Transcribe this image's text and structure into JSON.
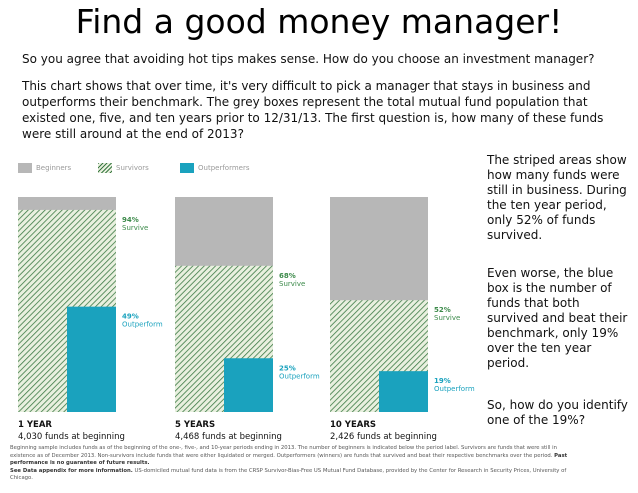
{
  "header": {
    "title": "Find a good money manager!",
    "paragraph1": "So you agree that avoiding hot tips makes sense.  How do you choose an investment manager?",
    "paragraph2": "This chart shows that over time, it's very difficult to pick a manager that stays in business and outperforms their benchmark.  The grey boxes represent the total mutual fund population that existed one, five, and ten years prior to 12/31/13.  The first question is, how many of these funds were still around at the end of 2013?"
  },
  "sidebar": {
    "note1": "The striped areas show how many funds were still in business. During the ten year period, only 52% of funds survived.",
    "note2": "Even worse, the blue box is the number of funds that both survived and beat their benchmark, only 19% over the ten year period.",
    "note3": "So, how do you identify one of the 19%?"
  },
  "footnote": {
    "line1": "Beginning sample includes funds as of the beginning of the one-, five-, and 10-year periods ending in 2013. The number of beginners is indicated below the period label. Survivors are funds that were still in existence as of December 2013. Non-survivors include funds that were either liquidated or merged. Outperformers (winners) are funds that survived and beat their respective benchmarks over the period.",
    "bold1": "Past performance is no guarantee of future results.",
    "bold2": "See Data appendix for more information.",
    "line2": "US-domiciled mutual fund data is from the CRSP Survivor-Bias-Free US Mutual Fund Database, provided by the Center for Research in Security Prices, University of Chicago."
  },
  "colors": {
    "beginners": "#b7b7b7",
    "survivors_stripe": "#3c7a45",
    "survivors_bg": "#e9f0df",
    "outperform": "#1aa2be",
    "label_green": "#3c8a4a",
    "label_blue": "#1aa2be"
  },
  "chart_data": {
    "type": "bar",
    "legend": [
      "Beginners",
      "Survivors",
      "Outperformers"
    ],
    "legend_position": "top-left",
    "categories": [
      "1 YEAR",
      "5 YEARS",
      "10 YEARS"
    ],
    "category_subtitles": [
      "4,030 funds at beginning",
      "4,468 funds at beginning",
      "2,426 funds at beginning"
    ],
    "beginners_pct": [
      100,
      100,
      100
    ],
    "series": [
      {
        "name": "Survivors",
        "values": [
          94,
          68,
          52
        ],
        "labels": [
          "94%",
          "68%",
          "52%"
        ],
        "caption": [
          "Survive",
          "Survive",
          "Survive"
        ]
      },
      {
        "name": "Outperformers",
        "values": [
          49,
          25,
          19
        ],
        "labels": [
          "49%",
          "25%",
          "19%"
        ],
        "caption": [
          "Outperform",
          "Outperform",
          "Outperform"
        ]
      }
    ],
    "ylim": [
      0,
      100
    ],
    "grid": false
  }
}
